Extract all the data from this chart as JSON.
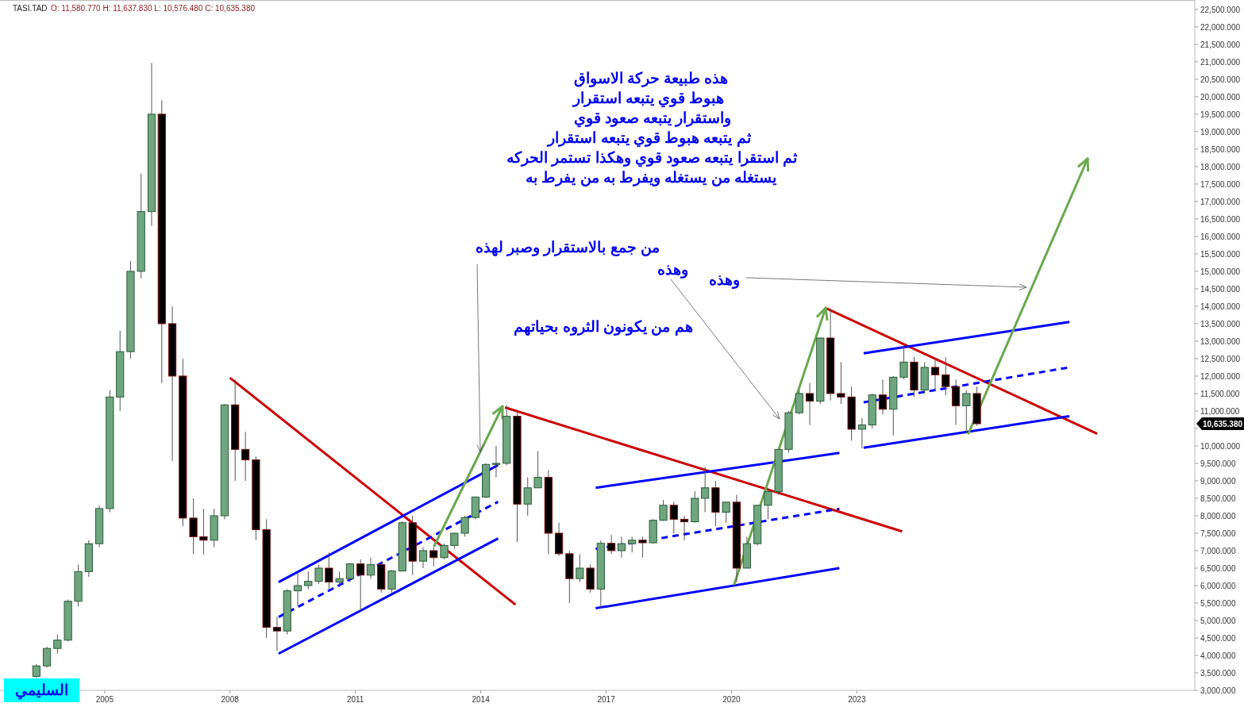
{
  "chart_data": {
    "type": "candlestick",
    "title": "TASI.TAD",
    "subtitle": "O: 11,580.770  H: 11,637.830  L: 10,576.480  C: 10,635.380",
    "x": [
      "2003-05-15",
      "2003-08-15",
      "2003-11-15",
      "2004-02-15",
      "2004-05-15",
      "2004-08-15",
      "2004-11-15",
      "2005-02-15",
      "2005-05-15",
      "2005-08-15",
      "2005-11-15",
      "2006-02-15",
      "2006-05-15",
      "2006-08-15",
      "2006-11-15",
      "2007-02-15",
      "2007-05-15",
      "2007-08-15",
      "2007-11-15",
      "2008-02-15",
      "2008-05-15",
      "2008-08-15",
      "2008-11-15",
      "2009-02-15",
      "2009-05-15",
      "2009-08-15",
      "2009-11-15",
      "2010-02-15",
      "2010-05-15",
      "2010-08-15",
      "2010-11-15",
      "2011-02-15",
      "2011-05-15",
      "2011-08-15",
      "2011-11-15",
      "2012-02-15",
      "2012-05-15",
      "2012-08-15",
      "2012-11-15",
      "2013-02-15",
      "2013-05-15",
      "2013-08-15",
      "2013-11-15",
      "2014-02-15",
      "2014-05-15",
      "2014-08-15",
      "2014-11-15",
      "2015-02-15",
      "2015-05-15",
      "2015-08-15",
      "2015-11-15",
      "2016-02-15",
      "2016-05-15",
      "2016-08-15",
      "2016-11-15",
      "2017-02-15",
      "2017-05-15",
      "2017-08-15",
      "2017-11-15",
      "2018-02-15",
      "2018-05-15",
      "2018-08-15",
      "2018-11-15",
      "2019-02-15",
      "2019-05-15",
      "2019-08-15",
      "2019-11-15",
      "2020-02-15",
      "2020-05-15",
      "2020-08-15",
      "2020-11-15",
      "2021-02-15",
      "2021-05-15",
      "2021-08-15",
      "2021-11-15",
      "2022-02-15",
      "2022-05-15",
      "2022-08-15",
      "2022-11-15",
      "2023-02-15",
      "2023-05-15",
      "2023-08-15",
      "2023-11-15",
      "2024-02-15",
      "2024-05-15",
      "2024-08-15",
      "2024-11-15",
      "2025-02-15",
      "2025-05-15",
      "2025-08-15",
      "2025-11-15"
    ],
    "ohlc": [
      [
        3400,
        3750,
        3350,
        3700
      ],
      [
        3700,
        4250,
        3650,
        4200
      ],
      [
        4200,
        4600,
        4050,
        4437
      ],
      [
        4437,
        5600,
        4400,
        5550
      ],
      [
        5550,
        6600,
        5400,
        6400
      ],
      [
        6400,
        7300,
        6250,
        7200
      ],
      [
        7200,
        8300,
        7100,
        8206
      ],
      [
        8206,
        11600,
        8100,
        11400
      ],
      [
        11400,
        13300,
        11000,
        12700
      ],
      [
        12700,
        15300,
        12500,
        15000
      ],
      [
        15000,
        17800,
        14800,
        16712
      ],
      [
        16712,
        20966,
        16300,
        19500
      ],
      [
        19500,
        19900,
        11800,
        13500
      ],
      [
        13500,
        14000,
        9570,
        12000
      ],
      [
        12000,
        12500,
        7700,
        7933
      ],
      [
        7933,
        8500,
        6900,
        7400
      ],
      [
        7400,
        8200,
        6900,
        7300
      ],
      [
        7300,
        8200,
        7100,
        8000
      ],
      [
        8000,
        11200,
        7900,
        11176
      ],
      [
        11176,
        11900,
        9000,
        9900
      ],
      [
        9900,
        10400,
        9000,
        9600
      ],
      [
        9600,
        9700,
        7300,
        7600
      ],
      [
        7600,
        7900,
        4500,
        4803
      ],
      [
        4803,
        5100,
        4130,
        4700
      ],
      [
        4700,
        5900,
        4600,
        5850
      ],
      [
        5850,
        6400,
        5400,
        6000
      ],
      [
        6000,
        6400,
        5900,
        6122
      ],
      [
        6122,
        6600,
        6050,
        6500
      ],
      [
        6500,
        6950,
        5900,
        6100
      ],
      [
        6100,
        6400,
        5950,
        6200
      ],
      [
        6200,
        6650,
        6100,
        6621
      ],
      [
        6621,
        6750,
        5270,
        6300
      ],
      [
        6300,
        6800,
        6200,
        6600
      ],
      [
        6600,
        6700,
        5800,
        5900
      ],
      [
        5900,
        6450,
        5800,
        6418
      ],
      [
        6418,
        7840,
        6400,
        7800
      ],
      [
        7800,
        8000,
        6300,
        6700
      ],
      [
        6700,
        7100,
        6500,
        7000
      ],
      [
        7000,
        7100,
        6550,
        6801
      ],
      [
        6801,
        7200,
        6750,
        7150
      ],
      [
        7150,
        7500,
        7050,
        7500
      ],
      [
        7500,
        8000,
        7400,
        7950
      ],
      [
        7950,
        8550,
        7900,
        8536
      ],
      [
        8536,
        9500,
        8500,
        9470
      ],
      [
        9470,
        10000,
        9100,
        9500
      ],
      [
        9500,
        11160,
        9450,
        10850
      ],
      [
        10850,
        11000,
        7250,
        8333
      ],
      [
        8333,
        9100,
        8000,
        8800
      ],
      [
        8800,
        9850,
        8800,
        9100
      ],
      [
        9100,
        9300,
        6900,
        7500
      ],
      [
        7500,
        7800,
        6850,
        6912
      ],
      [
        6912,
        7000,
        5500,
        6200
      ],
      [
        6200,
        6900,
        6100,
        6500
      ],
      [
        6500,
        6600,
        5800,
        5900
      ],
      [
        5900,
        7300,
        5350,
        7210
      ],
      [
        7210,
        7450,
        6900,
        7000
      ],
      [
        7000,
        7400,
        6800,
        7200
      ],
      [
        7200,
        7400,
        6950,
        7300
      ],
      [
        7300,
        7400,
        6800,
        7226
      ],
      [
        7226,
        7900,
        7200,
        7870
      ],
      [
        7870,
        8450,
        7850,
        8300
      ],
      [
        8300,
        8400,
        7500,
        7900
      ],
      [
        7900,
        8000,
        7300,
        7827
      ],
      [
        7827,
        8700,
        7800,
        8500
      ],
      [
        8500,
        9400,
        8100,
        8800
      ],
      [
        8800,
        9000,
        7700,
        8100
      ],
      [
        8100,
        8400,
        7800,
        8389
      ],
      [
        8389,
        8600,
        6100,
        6500
      ],
      [
        6500,
        7400,
        6500,
        7200
      ],
      [
        7200,
        8300,
        7150,
        8300
      ],
      [
        8300,
        8800,
        7900,
        8690
      ],
      [
        8690,
        9900,
        8600,
        9900
      ],
      [
        9900,
        11000,
        9800,
        10950
      ],
      [
        10950,
        11600,
        10900,
        11500
      ],
      [
        11500,
        11800,
        10600,
        11281
      ],
      [
        11281,
        13100,
        11200,
        13090
      ],
      [
        13090,
        13949,
        11300,
        11500
      ],
      [
        11500,
        12400,
        11200,
        11400
      ],
      [
        11400,
        11700,
        10150,
        10478
      ],
      [
        10478,
        10800,
        9930,
        10600
      ],
      [
        10600,
        11500,
        10500,
        11460
      ],
      [
        11460,
        11900,
        10900,
        11050
      ],
      [
        11050,
        12000,
        10300,
        11967
      ],
      [
        11967,
        12880,
        11900,
        12400
      ],
      [
        12400,
        12550,
        11400,
        11600
      ],
      [
        11600,
        12400,
        11500,
        12250
      ],
      [
        12250,
        12500,
        11600,
        12036
      ],
      [
        12036,
        12540,
        11450,
        11700
      ],
      [
        11700,
        11900,
        10600,
        11150
      ],
      [
        11150,
        11600,
        10360,
        11500
      ],
      [
        11500,
        11700,
        10576.48,
        10635.38
      ]
    ],
    "xlim": [
      "2002-07",
      "2031-02"
    ],
    "xticks": [
      "2005",
      "2008",
      "2011",
      "2014",
      "2017",
      "2020",
      "2023"
    ],
    "ylim": [
      3000,
      22770
    ],
    "yticks": [
      {
        "value": 3000,
        "label": "3,000.000"
      },
      {
        "value": 3500,
        "label": "3,500.000"
      },
      {
        "value": 4000,
        "label": "4,000.000"
      },
      {
        "value": 4500,
        "label": "4,500.000"
      },
      {
        "value": 5000,
        "label": "5,000.000"
      },
      {
        "value": 5500,
        "label": "5,500.000"
      },
      {
        "value": 6000,
        "label": "6,000.000"
      },
      {
        "value": 6500,
        "label": "6,500.000"
      },
      {
        "value": 7000,
        "label": "7,000.000"
      },
      {
        "value": 7500,
        "label": "7,500.000"
      },
      {
        "value": 8000,
        "label": "8,000.000"
      },
      {
        "value": 8500,
        "label": "8,500.000"
      },
      {
        "value": 9000,
        "label": "9,000.000"
      },
      {
        "value": 9500,
        "label": "9,500.000"
      },
      {
        "value": 10000,
        "label": "10,000.000"
      },
      {
        "value": 10500,
        "label": null
      },
      {
        "value": 11000,
        "label": "11,000.000"
      },
      {
        "value": 11500,
        "label": "11,500.000"
      },
      {
        "value": 12000,
        "label": "12,000.000"
      },
      {
        "value": 12500,
        "label": "12,500.000"
      },
      {
        "value": 13000,
        "label": "13,000.000"
      },
      {
        "value": 13500,
        "label": "13,500.000"
      },
      {
        "value": 14000,
        "label": "14,000.000"
      },
      {
        "value": 14500,
        "label": "14,500.000"
      },
      {
        "value": 15000,
        "label": "15,000.000"
      },
      {
        "value": 15500,
        "label": "15,500.000"
      },
      {
        "value": 16000,
        "label": "16,000.000"
      },
      {
        "value": 16500,
        "label": "16,500.000"
      },
      {
        "value": 17000,
        "label": "17,000.000"
      },
      {
        "value": 17500,
        "label": "17,500.000"
      },
      {
        "value": 18000,
        "label": "18,000.000"
      },
      {
        "value": 18500,
        "label": "18,500.000"
      },
      {
        "value": 19000,
        "label": "19,000.000"
      },
      {
        "value": 19500,
        "label": "19,500.000"
      },
      {
        "value": 20000,
        "label": "20,000.000"
      },
      {
        "value": 20500,
        "label": "20,500.000"
      },
      {
        "value": 21000,
        "label": "21,000.000"
      },
      {
        "value": 21500,
        "label": "21,500.000"
      },
      {
        "value": 22000,
        "label": "22,000.000"
      },
      {
        "value": 22500,
        "label": "22,500.000"
      }
    ],
    "grid": false,
    "series": [
      {
        "type": "line",
        "color": "#cc0000",
        "x": [
          "2008-01",
          "2014-11"
        ],
        "values": [
          11950,
          5450
        ],
        "line_style": "solid"
      },
      {
        "type": "line",
        "color": "#0000ff",
        "x": [
          "2009-03",
          "2014-06"
        ],
        "values": [
          6100,
          9450
        ],
        "line_style": "solid"
      },
      {
        "type": "line",
        "color": "#0000ff",
        "x": [
          "2009-03",
          "2014-06"
        ],
        "values": [
          5100,
          8400
        ],
        "line_style": "dashed"
      },
      {
        "type": "line",
        "color": "#0000ff",
        "x": [
          "2009-03",
          "2014-06"
        ],
        "values": [
          4050,
          7350
        ],
        "line_style": "solid"
      },
      {
        "type": "line",
        "color": "#cc0000",
        "x": [
          "2014-08",
          "2024-02"
        ],
        "values": [
          11100,
          7550
        ],
        "line_style": "solid"
      },
      {
        "type": "line",
        "color": "#0000ff",
        "x": [
          "2016-10",
          "2022-08"
        ],
        "values": [
          8800,
          9800
        ],
        "line_style": "solid"
      },
      {
        "type": "line",
        "color": "#0000ff",
        "x": [
          "2016-10",
          "2022-08"
        ],
        "values": [
          7050,
          8200
        ],
        "line_style": "dashed"
      },
      {
        "type": "line",
        "color": "#0000ff",
        "x": [
          "2016-10",
          "2022-08"
        ],
        "values": [
          5350,
          6500
        ],
        "line_style": "solid"
      },
      {
        "type": "line",
        "color": "#cc0000",
        "x": [
          "2022-04",
          "2028-10"
        ],
        "values": [
          13950,
          10350
        ],
        "line_style": "solid"
      },
      {
        "type": "line",
        "color": "#0000ff",
        "x": [
          "2023-03",
          "2028-02"
        ],
        "values": [
          12650,
          13550
        ],
        "line_style": "solid"
      },
      {
        "type": "line",
        "color": "#0000ff",
        "x": [
          "2023-03",
          "2028-02"
        ],
        "values": [
          11250,
          12250
        ],
        "line_style": "dashed"
      },
      {
        "type": "line",
        "color": "#0000ff",
        "x": [
          "2023-03",
          "2028-02"
        ],
        "values": [
          9950,
          10850
        ],
        "line_style": "solid"
      }
    ],
    "annotations": [
      "هذه طبيعة حركة الاسواق",
      "هبوط قوي  يتبعه استقرار",
      "واستقرار يتبعه صعود قوي",
      "ثم يتبعه هبوط قوي  يتبعه استقرار",
      "ثم استقرا يتبعه صعود قوي  وهكذا تستمر الحركه",
      "يستغله من يستغله ويفرط به من يفرط به",
      "من جمع بالاستقرار وصبر  لهذه",
      "وهذه",
      "وهذه",
      "هم من يكونون الثروه بحياتهم",
      "السليمي",
      "10,635.380"
    ]
  }
}
